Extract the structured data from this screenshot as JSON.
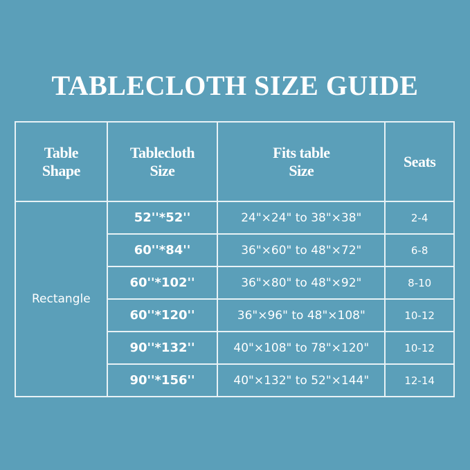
{
  "title": "TABLECLOTH SIZE GUIDE",
  "headers": {
    "shape": [
      "Table",
      "Shape"
    ],
    "size": [
      "Tablecloth",
      "Size"
    ],
    "fits": [
      "Fits table",
      "Size"
    ],
    "seats": "Seats"
  },
  "shape": "Rectangle",
  "rows": [
    {
      "size": "52''*52''",
      "fits": "24\"×24\" to 38\"×38\"",
      "seats": "2-4"
    },
    {
      "size": "60''*84''",
      "fits": "36\"×60\" to 48\"×72\"",
      "seats": "6-8"
    },
    {
      "size": "60''*102''",
      "fits": "36\"×80\" to 48\"×92\"",
      "seats": "8-10"
    },
    {
      "size": "60''*120''",
      "fits": "36\"×96\" to 48\"×108\"",
      "seats": "10-12"
    },
    {
      "size": "90''*132''",
      "fits": "40\"×108\" to 78\"×120\"",
      "seats": "10-12"
    },
    {
      "size": "90''*156''",
      "fits": "40\"×132\" to 52\"×144\"",
      "seats": "12-14"
    }
  ],
  "colors": {
    "background": "#5b9fb9",
    "text": "#ffffff",
    "grid": "#e8f2f6"
  }
}
